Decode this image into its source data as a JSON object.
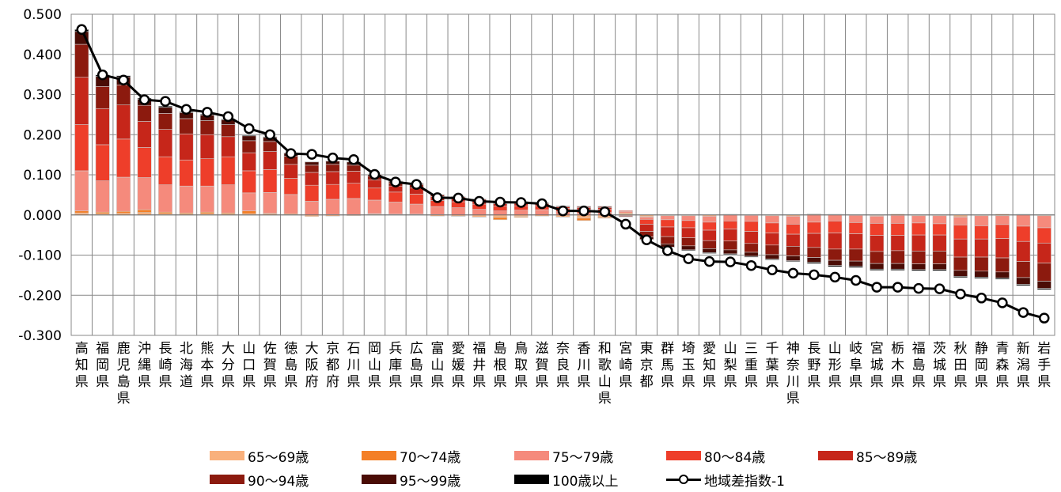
{
  "chart_data": {
    "type": "bar",
    "stacked": true,
    "categories": [
      "高知県",
      "福岡県",
      "鹿児島県",
      "沖縄県",
      "長崎県",
      "北海道",
      "熊本県",
      "大分県",
      "山口県",
      "佐賀県",
      "徳島県",
      "大阪府",
      "京都府",
      "石川県",
      "岡山県",
      "兵庫県",
      "広島県",
      "富山県",
      "愛媛県",
      "福井県",
      "島根県",
      "鳥取県",
      "滋賀県",
      "奈良県",
      "香川県",
      "和歌山県",
      "宮崎県",
      "東京都",
      "群馬県",
      "埼玉県",
      "愛知県",
      "山梨県",
      "三重県",
      "千葉県",
      "神奈川県",
      "長野県",
      "山形県",
      "岐阜県",
      "宮城県",
      "栃木県",
      "福島県",
      "茨城県",
      "秋田県",
      "静岡県",
      "青森県",
      "新潟県",
      "岩手県"
    ],
    "ylim": [
      -0.3,
      0.5
    ],
    "yticks": [
      "0.500",
      "0.400",
      "0.300",
      "0.200",
      "0.100",
      "0.000",
      "-0.100",
      "-0.200",
      "-0.300"
    ],
    "grid": true,
    "legend_position": "bottom",
    "colors": {
      "65~69": "#f9b07c",
      "70~74": "#f47f26",
      "75~79": "#f58a7c",
      "80~84": "#ee3e2a",
      "85~89": "#c6261a",
      "90~94": "#8c1a0e",
      "95~99": "#4a0c05",
      "100plus": "#000000",
      "line": "#000000"
    },
    "series": [
      {
        "name": "65～69歳",
        "key": "65~69",
        "values": [
          0.005,
          0.003,
          0.004,
          0.006,
          0.003,
          0.002,
          0.003,
          0.002,
          0.003,
          0.002,
          0.001,
          -0.004,
          -0.003,
          -0.002,
          0.002,
          0.001,
          0.001,
          -0.003,
          -0.003,
          -0.005,
          -0.006,
          -0.004,
          -0.003,
          -0.005,
          -0.008,
          -0.006,
          0.003,
          -0.004,
          -0.002,
          -0.002,
          -0.003,
          0.001,
          -0.001,
          -0.002,
          -0.003,
          0.002,
          0.001,
          -0.001,
          -0.002,
          -0.001,
          -0.002,
          -0.002,
          -0.003,
          -0.002,
          -0.002,
          0.001,
          -0.002
        ]
      },
      {
        "name": "70～74歳",
        "key": "70~74",
        "values": [
          0.005,
          0.004,
          0.005,
          0.007,
          0.004,
          0.003,
          0.004,
          0.003,
          0.007,
          0.002,
          0.002,
          0.0,
          0.001,
          0.001,
          0.001,
          0.001,
          0.001,
          0.001,
          -0.001,
          -0.001,
          -0.006,
          -0.002,
          0.0,
          -0.001,
          -0.006,
          -0.002,
          0.002,
          -0.001,
          0.001,
          0.0,
          0.0,
          0.001,
          0.0,
          0.0,
          0.0,
          0.001,
          0.001,
          0.0,
          -0.001,
          0.002,
          0.0,
          0.0,
          -0.002,
          0.001,
          0.002,
          0.001,
          0.0
        ]
      },
      {
        "name": "75～79歳",
        "key": "75~79",
        "values": [
          0.1,
          0.078,
          0.085,
          0.08,
          0.068,
          0.067,
          0.065,
          0.07,
          0.045,
          0.052,
          0.048,
          0.034,
          0.038,
          0.04,
          0.034,
          0.03,
          0.025,
          0.02,
          0.018,
          0.014,
          0.01,
          0.012,
          0.013,
          0.008,
          0.005,
          0.006,
          0.004,
          -0.006,
          -0.01,
          -0.012,
          -0.015,
          -0.015,
          -0.015,
          -0.018,
          -0.02,
          -0.018,
          -0.015,
          -0.018,
          -0.018,
          -0.02,
          -0.018,
          -0.02,
          -0.02,
          -0.025,
          -0.022,
          -0.028,
          -0.03
        ]
      },
      {
        "name": "80～84歳",
        "key": "80~84",
        "values": [
          0.115,
          0.09,
          0.095,
          0.075,
          0.07,
          0.065,
          0.068,
          0.07,
          0.055,
          0.057,
          0.04,
          0.04,
          0.037,
          0.038,
          0.03,
          0.025,
          0.025,
          0.015,
          0.015,
          0.013,
          0.012,
          0.011,
          0.01,
          0.008,
          0.008,
          0.008,
          0.002,
          -0.012,
          -0.018,
          -0.018,
          -0.02,
          -0.02,
          -0.025,
          -0.025,
          -0.025,
          -0.028,
          -0.03,
          -0.028,
          -0.03,
          -0.03,
          -0.03,
          -0.028,
          -0.035,
          -0.033,
          -0.035,
          -0.038,
          -0.038
        ]
      },
      {
        "name": "85～89歳",
        "key": "85~89",
        "values": [
          0.118,
          0.09,
          0.085,
          0.065,
          0.068,
          0.065,
          0.06,
          0.05,
          0.045,
          0.045,
          0.035,
          0.032,
          0.032,
          0.03,
          0.02,
          0.015,
          0.015,
          0.01,
          0.008,
          0.008,
          0.006,
          0.006,
          0.005,
          0.004,
          0.005,
          0.004,
          -0.002,
          -0.018,
          -0.024,
          -0.025,
          -0.026,
          -0.03,
          -0.03,
          -0.03,
          -0.03,
          -0.035,
          -0.04,
          -0.038,
          -0.04,
          -0.038,
          -0.04,
          -0.04,
          -0.045,
          -0.045,
          -0.048,
          -0.05,
          -0.05
        ]
      },
      {
        "name": "90～94歳",
        "key": "90~94",
        "values": [
          0.082,
          0.055,
          0.05,
          0.04,
          0.04,
          0.038,
          0.035,
          0.03,
          0.03,
          0.025,
          0.02,
          0.018,
          0.018,
          0.015,
          0.01,
          0.008,
          0.008,
          0.004,
          0.004,
          0.004,
          0.004,
          0.004,
          0.002,
          0.002,
          0.003,
          0.003,
          -0.002,
          -0.014,
          -0.018,
          -0.02,
          -0.02,
          -0.022,
          -0.022,
          -0.024,
          -0.024,
          -0.025,
          -0.028,
          -0.03,
          -0.03,
          -0.032,
          -0.032,
          -0.032,
          -0.033,
          -0.035,
          -0.035,
          -0.04,
          -0.045
        ]
      },
      {
        "name": "95～99歳",
        "key": "95~99",
        "values": [
          0.032,
          0.025,
          0.02,
          0.015,
          0.015,
          0.015,
          0.014,
          0.012,
          0.012,
          0.01,
          0.008,
          0.008,
          0.008,
          0.008,
          0.004,
          0.004,
          0.003,
          0.001,
          0.001,
          0.001,
          0.001,
          0.001,
          0.001,
          0.001,
          0.001,
          0.001,
          -0.001,
          -0.006,
          -0.008,
          -0.01,
          -0.01,
          -0.01,
          -0.01,
          -0.011,
          -0.012,
          -0.012,
          -0.013,
          -0.013,
          -0.014,
          -0.014,
          -0.014,
          -0.014,
          -0.015,
          -0.015,
          -0.015,
          -0.017,
          -0.018
        ]
      },
      {
        "name": "100歳以上",
        "key": "100plus",
        "values": [
          0.005,
          0.004,
          0.003,
          0.003,
          0.003,
          0.002,
          0.002,
          0.002,
          0.002,
          0.002,
          0.001,
          0.001,
          0.001,
          0.001,
          0.001,
          0.001,
          0.001,
          0.0,
          0.0,
          0.0,
          0.0,
          0.0,
          0.0,
          0.0,
          0.0,
          0.0,
          0.0,
          -0.001,
          -0.001,
          -0.002,
          -0.002,
          -0.002,
          -0.002,
          -0.002,
          -0.002,
          -0.003,
          -0.003,
          -0.003,
          -0.003,
          -0.003,
          -0.003,
          -0.003,
          -0.003,
          -0.003,
          -0.003,
          -0.003,
          -0.003
        ]
      },
      {
        "name": "地域差指数-1",
        "key": "line",
        "type": "line",
        "values": [
          0.462,
          0.349,
          0.336,
          0.287,
          0.283,
          0.263,
          0.256,
          0.245,
          0.215,
          0.2,
          0.153,
          0.151,
          0.142,
          0.138,
          0.101,
          0.082,
          0.076,
          0.043,
          0.042,
          0.034,
          0.032,
          0.031,
          0.028,
          0.01,
          0.01,
          0.008,
          -0.023,
          -0.062,
          -0.089,
          -0.109,
          -0.116,
          -0.117,
          -0.126,
          -0.137,
          -0.145,
          -0.149,
          -0.155,
          -0.163,
          -0.18,
          -0.18,
          -0.183,
          -0.184,
          -0.197,
          -0.207,
          -0.219,
          -0.243,
          -0.257
        ]
      }
    ]
  }
}
